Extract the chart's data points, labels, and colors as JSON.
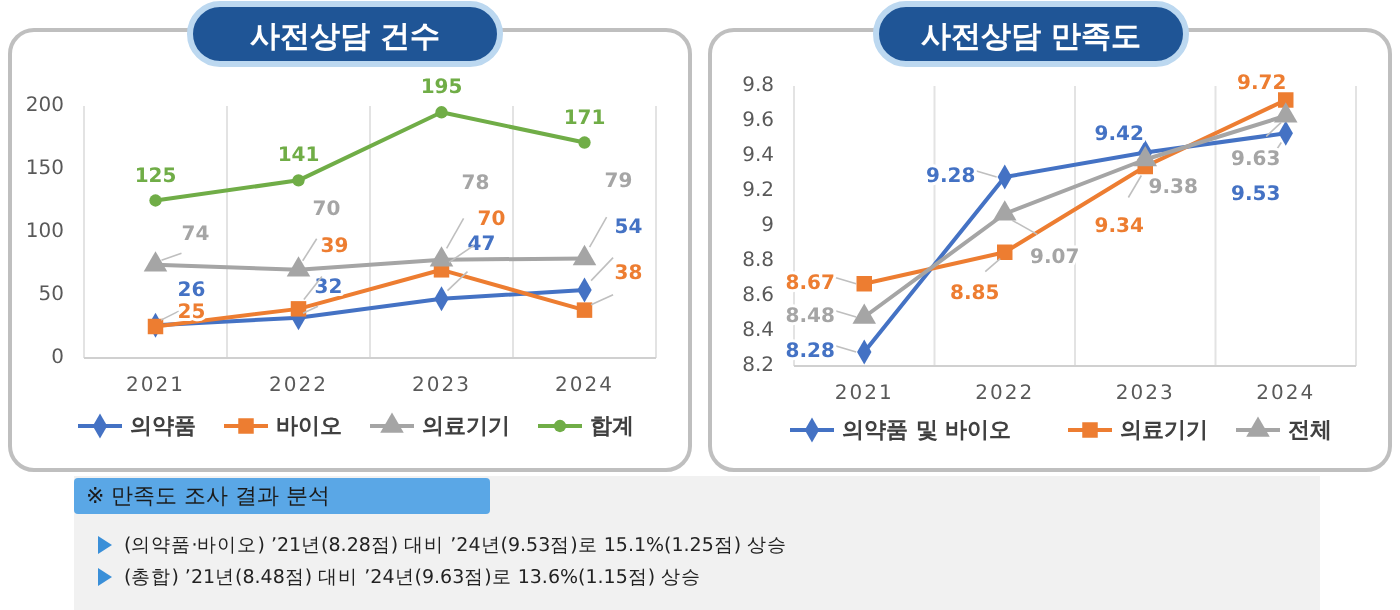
{
  "chart_data": [
    {
      "type": "line",
      "title": "사전상담 건수",
      "categories": [
        "2021",
        "2022",
        "2023",
        "2024"
      ],
      "ylim": [
        0,
        200
      ],
      "yticks": [
        0,
        50,
        100,
        150,
        200
      ],
      "grid": "x",
      "legend": "bottom",
      "data_labels": true,
      "series": [
        {
          "name": "의약품",
          "color": "#4472c4",
          "marker": "diamond",
          "values": [
            26,
            32,
            47,
            54
          ]
        },
        {
          "name": "바이오",
          "color": "#ed7d31",
          "marker": "square",
          "values": [
            25,
            39,
            70,
            38
          ]
        },
        {
          "name": "의료기기",
          "color": "#a5a5a5",
          "marker": "triangle",
          "values": [
            74,
            70,
            78,
            79
          ]
        },
        {
          "name": "합계",
          "color": "#70ad47",
          "marker": "circle",
          "values": [
            125,
            141,
            195,
            171
          ]
        }
      ]
    },
    {
      "type": "line",
      "title": "사전상담 만족도",
      "categories": [
        "2021",
        "2022",
        "2023",
        "2024"
      ],
      "ylim": [
        8.2,
        9.8
      ],
      "yticks": [
        8.2,
        8.4,
        8.6,
        8.8,
        9,
        9.2,
        9.4,
        9.6,
        9.8
      ],
      "grid": "x",
      "legend": "bottom",
      "data_labels": true,
      "series": [
        {
          "name": "의약품 및 바이오",
          "color": "#4472c4",
          "marker": "diamond",
          "values": [
            8.28,
            9.28,
            9.42,
            9.53
          ]
        },
        {
          "name": "의료기기",
          "color": "#ed7d31",
          "marker": "square",
          "values": [
            8.67,
            8.85,
            9.34,
            9.72
          ]
        },
        {
          "name": "전체",
          "color": "#a5a5a5",
          "marker": "triangle",
          "values": [
            8.48,
            9.07,
            9.38,
            9.63
          ]
        }
      ]
    },
    {
      "type": "other",
      "title": "※ 만족도 조사 결과 분석",
      "annotations": [
        "(의약품·바이오) ’21년(8.28점) 대비 ’24년(9.53점)로 15.1%(1.25점) 상승",
        "(총합) ’21년(8.48점) 대비 ’24년(9.63점)로 13.6%(1.15점) 상승"
      ]
    }
  ]
}
